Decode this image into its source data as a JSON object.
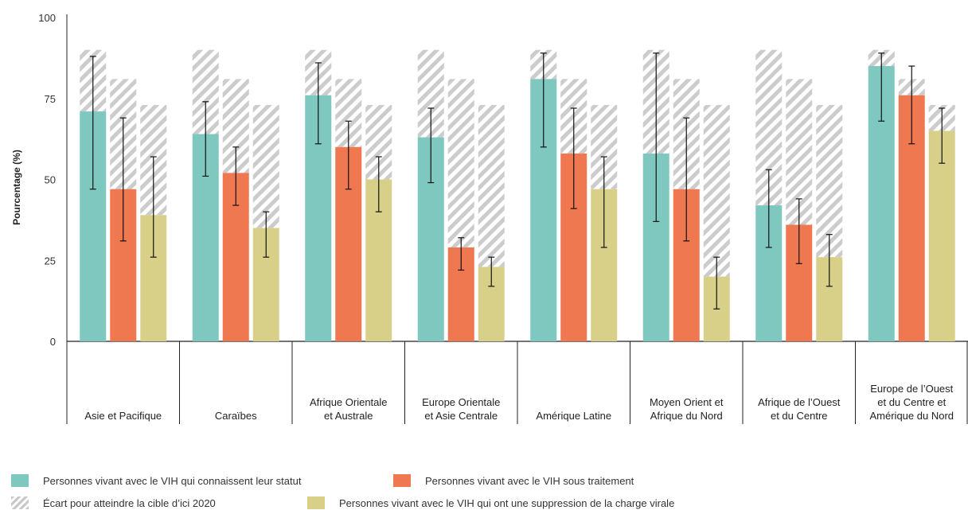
{
  "chart_data": {
    "type": "bar",
    "ylabel": "Pourcentage (%)",
    "ylim": [
      0,
      100
    ],
    "yticks": [
      "0",
      "25",
      "50",
      "75",
      "100"
    ],
    "categories": [
      "Asie et Pacifique",
      "Caraïbes",
      "Afrique Orientale et Australe",
      "Europe Orientale et Asie Centrale",
      "Amérique Latine",
      "Moyen Orient et Afrique du Nord",
      "Afrique de l’Ouest et du Centre",
      "Europe de l’Ouest et du Centre et Amérique du Nord"
    ],
    "category_lines": [
      [
        "Asie et Pacifique"
      ],
      [
        "Caraïbes"
      ],
      [
        "Afrique Orientale",
        "et Australe"
      ],
      [
        "Europe Orientale",
        "et Asie Centrale"
      ],
      [
        "Amérique Latine"
      ],
      [
        "Moyen Orient et",
        "Afrique du Nord"
      ],
      [
        "Afrique de l’Ouest",
        "et du Centre"
      ],
      [
        "Europe de l’Ouest",
        "et du Centre et",
        "Amérique du Nord"
      ]
    ],
    "targets": [
      90,
      81,
      73
    ],
    "series": [
      {
        "name": "Personnes vivant avec le VIH qui connaissent leur statut",
        "color": "#7ec8c0",
        "values": [
          71,
          64,
          76,
          63,
          81,
          58,
          42,
          85
        ],
        "error_low": [
          47,
          51,
          61,
          49,
          60,
          37,
          29,
          68
        ],
        "error_high": [
          88,
          74,
          86,
          72,
          89,
          89,
          53,
          89
        ]
      },
      {
        "name": "Personnes vivant avec le VIH sous traitement",
        "color": "#f07850",
        "values": [
          47,
          52,
          60,
          29,
          58,
          47,
          36,
          76
        ],
        "error_low": [
          31,
          42,
          47,
          22,
          41,
          31,
          24,
          61
        ],
        "error_high": [
          69,
          60,
          68,
          32,
          72,
          69,
          44,
          85
        ]
      },
      {
        "name": "Personnes vivant avec le VIH qui ont une suppression de la charge virale",
        "color": "#d8d088",
        "values": [
          39,
          35,
          50,
          23,
          47,
          20,
          26,
          65
        ],
        "error_low": [
          26,
          26,
          40,
          17,
          29,
          10,
          17,
          55
        ],
        "error_high": [
          57,
          40,
          57,
          26,
          57,
          26,
          33,
          72
        ]
      }
    ],
    "gap_series": {
      "name": "Écart pour atteindre la cible d’ici 2020"
    },
    "legend_position": "bottom"
  },
  "legend": {
    "statut": "Personnes vivant avec le VIH qui connaissent leur statut",
    "traitement": "Personnes vivant avec le VIH sous traitement",
    "ecart": "Écart pour atteindre la cible d’ici 2020",
    "suppression": "Personnes vivant avec le VIH qui ont une suppression de la charge virale"
  }
}
